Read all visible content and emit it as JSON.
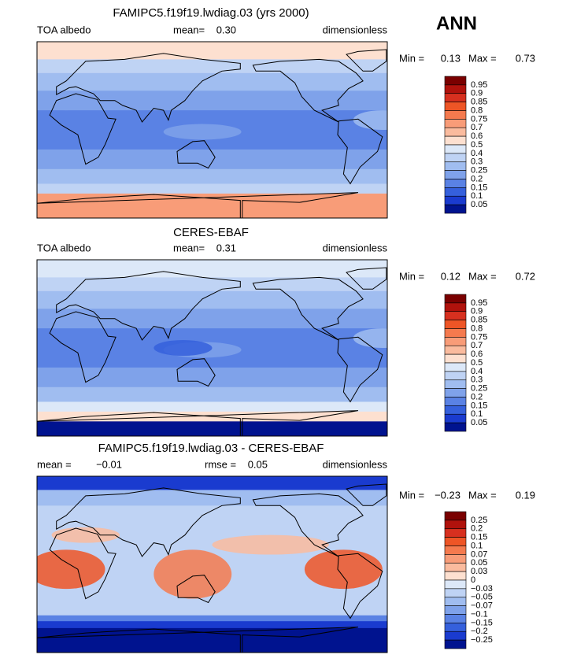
{
  "season": "ANN",
  "panels": [
    {
      "title": "FAMIPC5.f19f19.lwdiag.03 (yrs 2000)",
      "subheader": [
        "TOA albedo",
        "mean=",
        "0.30",
        "dimensionless"
      ],
      "range": [
        "Min =",
        "0.13",
        "Max =",
        "0.73"
      ],
      "colorbar": [
        "0.95",
        "0.9",
        "0.85",
        "0.8",
        "0.75",
        "0.7",
        "0.6",
        "0.5",
        "0.4",
        "0.3",
        "0.25",
        "0.2",
        "0.15",
        "0.1",
        "0.05"
      ]
    },
    {
      "title": "CERES-EBAF",
      "subheader": [
        "TOA albedo",
        "mean=",
        "0.31",
        "dimensionless"
      ],
      "range": [
        "Min =",
        "0.12",
        "Max =",
        "0.72"
      ],
      "colorbar": [
        "0.95",
        "0.9",
        "0.85",
        "0.8",
        "0.75",
        "0.7",
        "0.6",
        "0.5",
        "0.4",
        "0.3",
        "0.25",
        "0.2",
        "0.15",
        "0.1",
        "0.05"
      ]
    },
    {
      "title": "FAMIPC5.f19f19.lwdiag.03 - CERES-EBAF",
      "subheader": [
        "mean =",
        "−0.01",
        "rmse =",
        "0.05",
        "dimensionless"
      ],
      "range": [
        "Min =",
        "−0.23",
        "Max =",
        "0.19"
      ],
      "colorbar": [
        "0.25",
        "0.2",
        "0.15",
        "0.1",
        "0.07",
        "0.05",
        "0.03",
        "0",
        "−0.03",
        "−0.05",
        "−0.07",
        "−0.1",
        "−0.15",
        "−0.2",
        "−0.25"
      ]
    }
  ]
}
